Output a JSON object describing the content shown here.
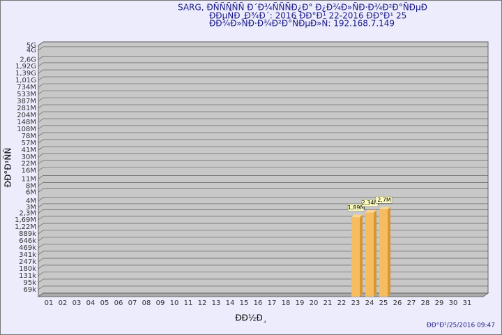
{
  "chart_data": {
    "type": "bar",
    "title": "SARG,  ÐÑÑÑÑÑ Ð´Ð¾ÑÑÑÐ¿Ð° Ð¿Ð¾Ð»ÑÐ·Ð¾Ð²Ð°ÑÐµÐ",
    "subtitle": "ÐÐµÑÐ¸Ð¾Ð´: 2016 ÐÐ°Ð¹ 22-2016 ÐÐ°Ð¹ 25",
    "subtitle2": "ÐÐ¾Ð»ÑÐ·Ð¾Ð²Ð°ÑÐµÐ»Ñ: 192.168.7.149",
    "y_label": "ÐÐ°Ð¹ÑÑ",
    "x_label": "ÐÐ½Ð¸",
    "footer": "ÐÐ°Ð¹/25/2016 09:47",
    "categories": [
      "01",
      "02",
      "03",
      "04",
      "05",
      "06",
      "07",
      "08",
      "09",
      "10",
      "11",
      "12",
      "13",
      "14",
      "15",
      "16",
      "17",
      "18",
      "19",
      "20",
      "21",
      "22",
      "23",
      "24",
      "25",
      "26",
      "27",
      "28",
      "29",
      "30",
      "31"
    ],
    "values": [
      null,
      null,
      null,
      null,
      null,
      null,
      null,
      null,
      null,
      null,
      null,
      null,
      null,
      null,
      null,
      null,
      null,
      null,
      null,
      null,
      null,
      null,
      1890000,
      2340000,
      2700000,
      null,
      null,
      null,
      null,
      null,
      null
    ],
    "value_labels": [
      null,
      null,
      null,
      null,
      null,
      null,
      null,
      null,
      null,
      null,
      null,
      null,
      null,
      null,
      null,
      null,
      null,
      null,
      null,
      null,
      null,
      null,
      "1,89M",
      "2,34M",
      "2,7M",
      null,
      null,
      null,
      null,
      null,
      null
    ],
    "color": "#f5bd5f",
    "log_scale": true,
    "grid": true,
    "ylim": [
      50000,
      5000000000
    ],
    "yticks": [
      {
        "value": 69000,
        "label": "69k"
      },
      {
        "value": 95000,
        "label": "95k"
      },
      {
        "value": 131000,
        "label": "131k"
      },
      {
        "value": 180000,
        "label": "180k"
      },
      {
        "value": 247000,
        "label": "247k"
      },
      {
        "value": 341000,
        "label": "341k"
      },
      {
        "value": 469000,
        "label": "469k"
      },
      {
        "value": 646000,
        "label": "646k"
      },
      {
        "value": 889000,
        "label": "889k"
      },
      {
        "value": 1220000,
        "label": "1,22M"
      },
      {
        "value": 1690000,
        "label": "1,69M"
      },
      {
        "value": 2300000,
        "label": "2,3M"
      },
      {
        "value": 3000000,
        "label": "3M"
      },
      {
        "value": 4000000,
        "label": "4M"
      },
      {
        "value": 6000000,
        "label": "6M"
      },
      {
        "value": 8000000,
        "label": "8M"
      },
      {
        "value": 11000000,
        "label": "11M"
      },
      {
        "value": 16000000,
        "label": "16M"
      },
      {
        "value": 22000000,
        "label": "22M"
      },
      {
        "value": 30000000,
        "label": "30M"
      },
      {
        "value": 41000000,
        "label": "41M"
      },
      {
        "value": 57000000,
        "label": "57M"
      },
      {
        "value": 78000000,
        "label": "78M"
      },
      {
        "value": 108000000,
        "label": "108M"
      },
      {
        "value": 148000000,
        "label": "148M"
      },
      {
        "value": 204000000,
        "label": "204M"
      },
      {
        "value": 281000000,
        "label": "281M"
      },
      {
        "value": 387000000,
        "label": "387M"
      },
      {
        "value": 533000000,
        "label": "533M"
      },
      {
        "value": 734000000,
        "label": "734M"
      },
      {
        "value": 1010000000,
        "label": "1,01G"
      },
      {
        "value": 1390000000,
        "label": "1,39G"
      },
      {
        "value": 1920000000,
        "label": "1,92G"
      },
      {
        "value": 2600000000,
        "label": "2,6G"
      },
      {
        "value": 4000000000,
        "label": "4G"
      },
      {
        "value": 5000000000,
        "label": "5G"
      }
    ]
  }
}
